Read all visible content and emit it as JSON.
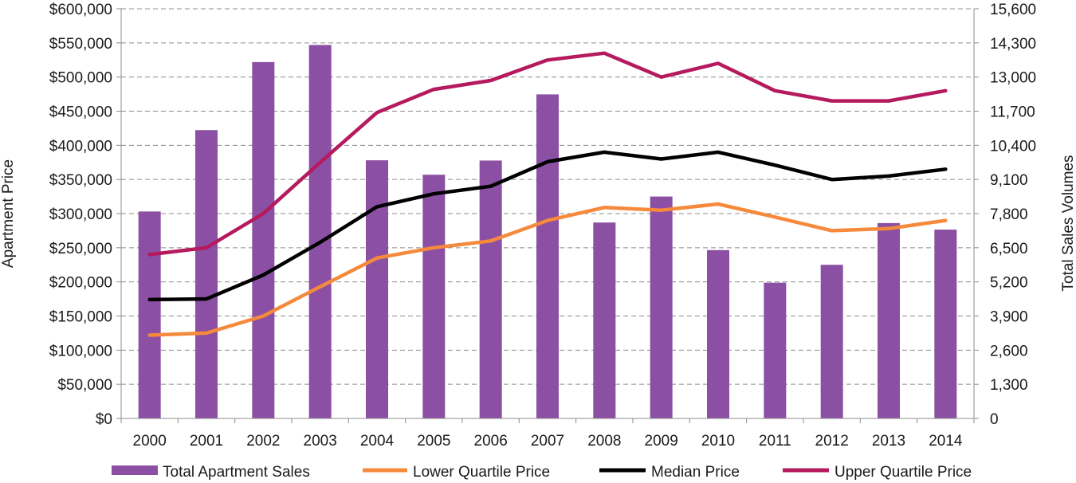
{
  "chart_data": {
    "type": "bar+line",
    "categories": [
      "2000",
      "2001",
      "2002",
      "2003",
      "2004",
      "2005",
      "2006",
      "2007",
      "2008",
      "2009",
      "2010",
      "2011",
      "2012",
      "2013",
      "2014"
    ],
    "ylabel_left": "Apartment Price",
    "ylabel_right": "Total Sales Volumes",
    "ylim_left": [
      0,
      600000
    ],
    "ylim_right": [
      0,
      15600
    ],
    "y_ticks_left": [
      "$0",
      "$50,000",
      "$100,000",
      "$150,000",
      "$200,000",
      "$250,000",
      "$300,000",
      "$350,000",
      "$400,000",
      "$450,000",
      "$500,000",
      "$550,000",
      "$600,000"
    ],
    "y_ticks_right": [
      "0",
      "1,300",
      "2,600",
      "3,900",
      "5,200",
      "6,500",
      "7,800",
      "9,100",
      "10,400",
      "11,700",
      "13,000",
      "14,300",
      "15,600"
    ],
    "grid": true,
    "legend_position": "bottom",
    "bars": {
      "name": "Total Apartment Sales",
      "color": "#8b4fa3",
      "axis": "right",
      "values": [
        7880,
        10980,
        13570,
        14220,
        9830,
        9280,
        9820,
        12340,
        7460,
        8450,
        6410,
        5170,
        5850,
        7440,
        7190
      ]
    },
    "series": [
      {
        "name": "Lower Quartile Price",
        "color": "#f58a3c",
        "axis": "left",
        "values": [
          122000,
          125000,
          150000,
          193000,
          235000,
          250000,
          260000,
          290000,
          309000,
          305000,
          314000,
          295000,
          275000,
          278000,
          290000
        ]
      },
      {
        "name": "Median Price",
        "color": "#000000",
        "axis": "left",
        "values": [
          174000,
          175000,
          210000,
          258000,
          310000,
          329000,
          340000,
          376000,
          390000,
          380000,
          390000,
          371000,
          350000,
          355000,
          365000
        ]
      },
      {
        "name": "Upper Quartile Price",
        "color": "#b5195e",
        "axis": "left",
        "values": [
          240000,
          250000,
          300000,
          375000,
          448000,
          482000,
          495000,
          525000,
          535000,
          500000,
          520000,
          480000,
          465000,
          465000,
          480000
        ]
      }
    ]
  }
}
